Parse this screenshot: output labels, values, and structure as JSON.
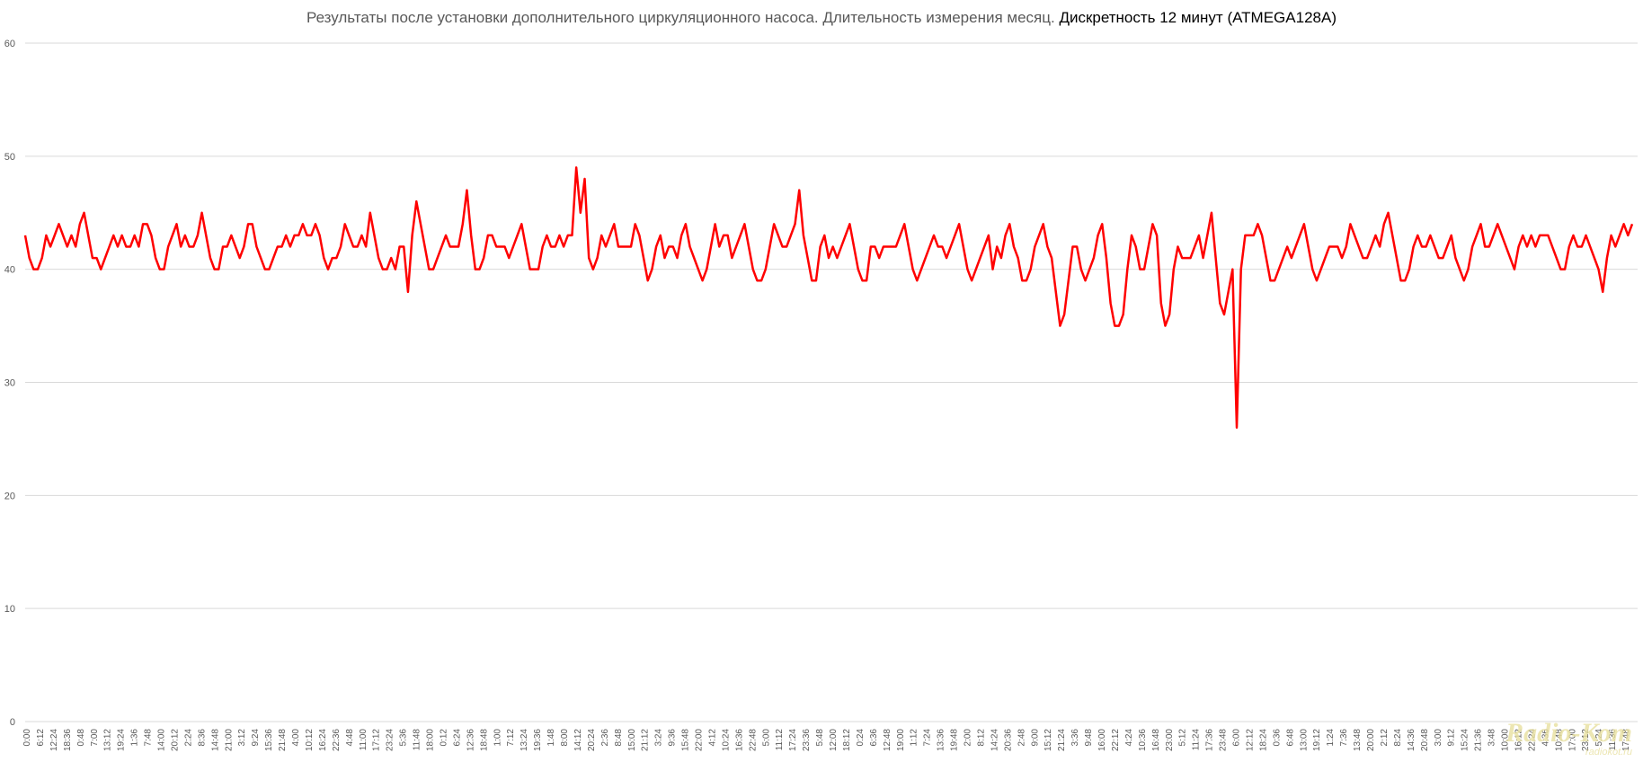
{
  "chart_data": {
    "type": "line",
    "title_main": "Результаты после установки дополнительного циркуляционного насоса. Длительность измерения месяц. ",
    "title_emphasis": "Дискретность 12 минут (ATMEGA128A)",
    "xlabel": "",
    "ylabel": "",
    "ylim": [
      0,
      60
    ],
    "yticks": [
      0,
      10,
      20,
      30,
      40,
      50,
      60
    ],
    "grid": "horizontal",
    "legend": "none",
    "line_color": "#ff0000",
    "gridline_color": "#d9d9d9",
    "tick_label_color": "#595959",
    "x_tick_labels": [
      "0:00",
      "6:12",
      "12:24",
      "18:36",
      "0:48",
      "7:00",
      "13:12",
      "19:24",
      "1:36",
      "7:48",
      "14:00",
      "20:12",
      "2:24",
      "8:36",
      "14:48",
      "21:00",
      "3:12",
      "9:24",
      "15:36",
      "21:48",
      "4:00",
      "10:12",
      "16:24",
      "22:36",
      "4:48",
      "11:00",
      "17:12",
      "23:24",
      "5:36",
      "11:48",
      "18:00",
      "0:12",
      "6:24",
      "12:36",
      "18:48",
      "1:00",
      "7:12",
      "13:24",
      "19:36",
      "1:48",
      "8:00",
      "14:12",
      "20:24",
      "2:36",
      "8:48",
      "15:00",
      "21:12",
      "3:24",
      "9:36",
      "15:48",
      "22:00",
      "4:12",
      "10:24",
      "16:36",
      "22:48",
      "5:00",
      "11:12",
      "17:24",
      "23:36",
      "5:48",
      "12:00",
      "18:12",
      "0:24",
      "6:36",
      "12:48",
      "19:00",
      "1:12",
      "7:24",
      "13:36",
      "19:48",
      "2:00",
      "8:12",
      "14:24",
      "20:36",
      "2:48",
      "9:00",
      "15:12",
      "21:24",
      "3:36",
      "9:48",
      "16:00",
      "22:12",
      "4:24",
      "10:36",
      "16:48",
      "23:00",
      "5:12",
      "11:24",
      "17:36",
      "23:48",
      "6:00",
      "12:12",
      "18:24",
      "0:36",
      "6:48",
      "13:00",
      "19:12",
      "1:24",
      "7:36",
      "13:48",
      "20:00",
      "2:12",
      "8:24",
      "14:36",
      "20:48",
      "3:00",
      "9:12",
      "15:24",
      "21:36",
      "3:48",
      "10:00",
      "16:12",
      "22:24",
      "4:36",
      "10:48",
      "17:00",
      "23:12",
      "5:24",
      "11:36",
      "17:48"
    ],
    "series": [
      {
        "values": [
          43,
          41,
          40,
          40,
          41,
          43,
          42,
          43,
          44,
          43,
          42,
          43,
          42,
          44,
          45,
          43,
          41,
          41,
          40,
          41,
          42,
          43,
          42,
          43,
          42,
          42,
          43,
          42,
          44,
          44,
          43,
          41,
          40,
          40,
          42,
          43,
          44,
          42,
          43,
          42,
          42,
          43,
          45,
          43,
          41,
          40,
          40,
          42,
          42,
          43,
          42,
          41,
          42,
          44,
          44,
          42,
          41,
          40,
          40,
          41,
          42,
          42,
          43,
          42,
          43,
          43,
          44,
          43,
          43,
          44,
          43,
          41,
          40,
          41,
          41,
          42,
          44,
          43,
          42,
          42,
          43,
          42,
          45,
          43,
          41,
          40,
          40,
          41,
          40,
          42,
          42,
          38,
          43,
          46,
          44,
          42,
          40,
          40,
          41,
          42,
          43,
          42,
          42,
          42,
          44,
          47,
          43,
          40,
          40,
          41,
          43,
          43,
          42,
          42,
          42,
          41,
          42,
          43,
          44,
          42,
          40,
          40,
          40,
          42,
          43,
          42,
          42,
          43,
          42,
          43,
          43,
          49,
          45,
          48,
          41,
          40,
          41,
          43,
          42,
          43,
          44,
          42,
          42,
          42,
          42,
          44,
          43,
          41,
          39,
          40,
          42,
          43,
          41,
          42,
          42,
          41,
          43,
          44,
          42,
          41,
          40,
          39,
          40,
          42,
          44,
          42,
          43,
          43,
          41,
          42,
          43,
          44,
          42,
          40,
          39,
          39,
          40,
          42,
          44,
          43,
          42,
          42,
          43,
          44,
          47,
          43,
          41,
          39,
          39,
          42,
          43,
          41,
          42,
          41,
          42,
          43,
          44,
          42,
          40,
          39,
          39,
          42,
          42,
          41,
          42,
          42,
          42,
          42,
          43,
          44,
          42,
          40,
          39,
          40,
          41,
          42,
          43,
          42,
          42,
          41,
          42,
          43,
          44,
          42,
          40,
          39,
          40,
          41,
          42,
          43,
          40,
          42,
          41,
          43,
          44,
          42,
          41,
          39,
          39,
          40,
          42,
          43,
          44,
          42,
          41,
          38,
          35,
          36,
          39,
          42,
          42,
          40,
          39,
          40,
          41,
          43,
          44,
          41,
          37,
          35,
          35,
          36,
          40,
          43,
          42,
          40,
          40,
          42,
          44,
          43,
          37,
          35,
          36,
          40,
          42,
          41,
          41,
          41,
          42,
          43,
          41,
          43,
          45,
          41,
          37,
          36,
          38,
          40,
          26,
          40,
          43,
          43,
          43,
          44,
          43,
          41,
          39,
          39,
          40,
          41,
          42,
          41,
          42,
          43,
          44,
          42,
          40,
          39,
          40,
          41,
          42,
          42,
          42,
          41,
          42,
          44,
          43,
          42,
          41,
          41,
          42,
          43,
          42,
          44,
          45,
          43,
          41,
          39,
          39,
          40,
          42,
          43,
          42,
          42,
          43,
          42,
          41,
          41,
          42,
          43,
          41,
          40,
          39,
          40,
          42,
          43,
          44,
          42,
          42,
          43,
          44,
          43,
          42,
          41,
          40,
          42,
          43,
          42,
          43,
          42,
          43,
          43,
          43,
          42,
          41,
          40,
          40,
          42,
          43,
          42,
          42,
          43,
          42,
          41,
          40,
          38,
          41,
          43,
          42,
          43,
          44,
          43,
          44
        ]
      }
    ]
  },
  "watermark": {
    "logo": "Radio-Кот",
    "site": "radiokot.ru"
  }
}
